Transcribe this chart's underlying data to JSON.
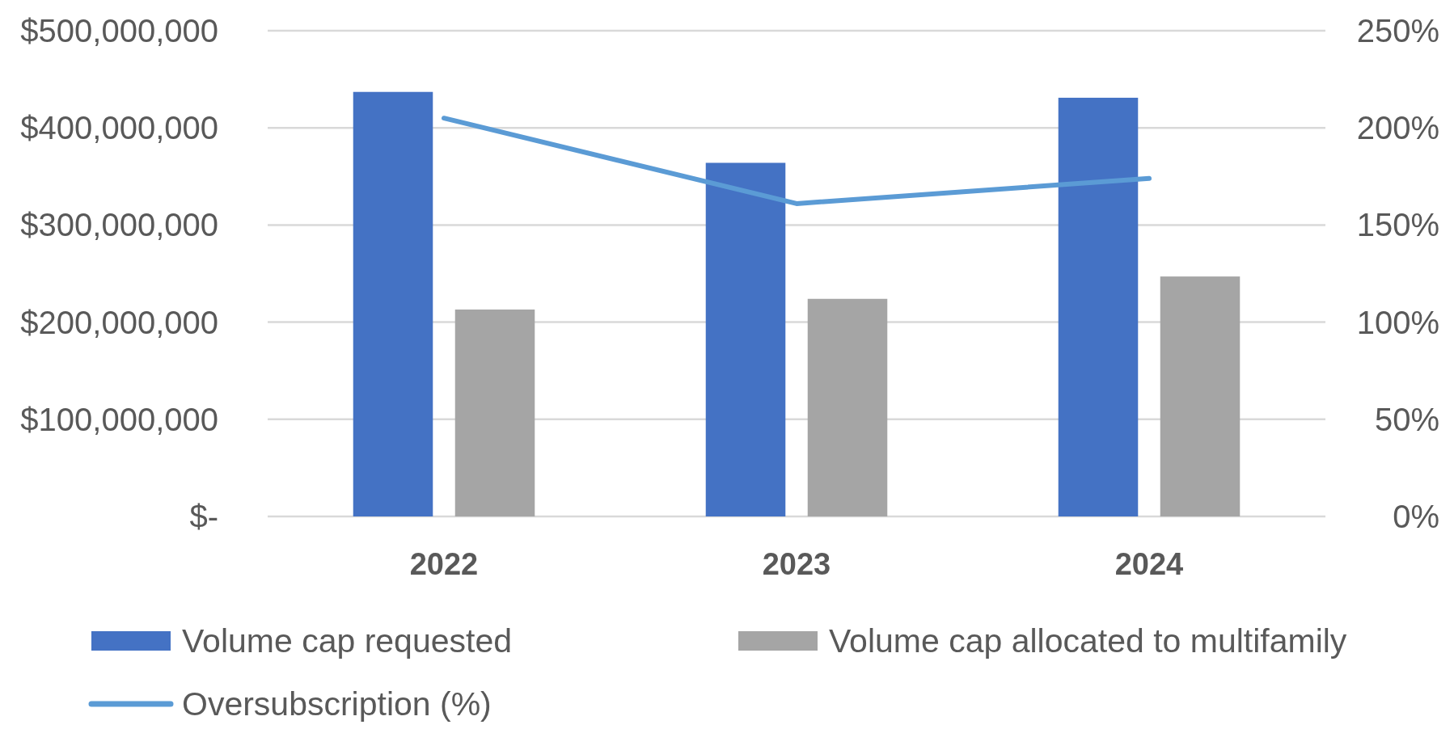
{
  "chart_data": {
    "type": "bar",
    "categories": [
      "2022",
      "2023",
      "2024"
    ],
    "series": [
      {
        "name": "Volume cap requested",
        "color": "#4472c4",
        "values": [
          437000000,
          364000000,
          431000000
        ]
      },
      {
        "name": "Volume cap allocated to multifamily",
        "color": "#a5a5a5",
        "values": [
          213000000,
          224000000,
          247000000
        ]
      },
      {
        "name": "Oversubscription (%)",
        "type": "line",
        "axis": "y2",
        "color": "#5b9bd5",
        "values": [
          205,
          161,
          174
        ]
      }
    ],
    "ylim": [
      0,
      500000000
    ],
    "yticks": [
      {
        "value": 0,
        "label": "$-"
      },
      {
        "value": 100000000,
        "label": "$100,000,000"
      },
      {
        "value": 200000000,
        "label": "$200,000,000"
      },
      {
        "value": 300000000,
        "label": "$300,000,000"
      },
      {
        "value": 400000000,
        "label": "$400,000,000"
      },
      {
        "value": 500000000,
        "label": "$500,000,000"
      }
    ],
    "y2lim": [
      0,
      250
    ],
    "y2ticks": [
      {
        "value": 0,
        "label": "0%"
      },
      {
        "value": 50,
        "label": "50%"
      },
      {
        "value": 100,
        "label": "100%"
      },
      {
        "value": 150,
        "label": "150%"
      },
      {
        "value": 200,
        "label": "200%"
      },
      {
        "value": 250,
        "label": "250%"
      }
    ],
    "grid": "y",
    "legend": "bottom",
    "marker": "none",
    "line_style": "solid"
  }
}
